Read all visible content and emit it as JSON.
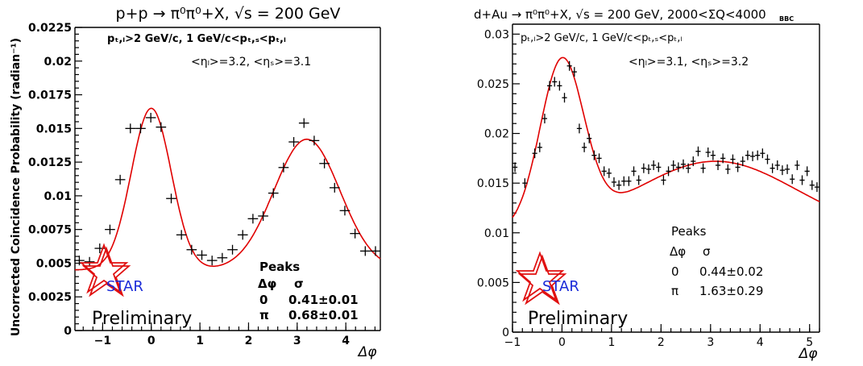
{
  "figure": {
    "ylabel": "Uncorrected Coincidence Probability (radian⁻¹)"
  },
  "chart_data": [
    {
      "type": "scatter",
      "title": "p+p → π⁰π⁰+X, √s = 200 GeV",
      "cuts_line1": "pₜ,ₗ>2 GeV/c,  1 GeV/c<pₜ,ₛ<pₜ,ₗ",
      "cuts_line2": "<ηₗ>=3.2, <ηₛ>=3.1",
      "xlabel": "Δφ",
      "ylabel": "Uncorrected Coincidence Probability (radian⁻¹)",
      "xlim": [
        -1.57,
        4.71
      ],
      "ylim": [
        0,
        0.0225
      ],
      "xticks": [
        -1,
        0,
        1,
        2,
        3,
        4
      ],
      "yticks": [
        0,
        0.0025,
        0.005,
        0.0075,
        0.01,
        0.0125,
        0.015,
        0.0175,
        0.02,
        0.0225
      ],
      "ytick_labels": [
        "0",
        "0.0025",
        "0.005",
        "0.0075",
        "0.01",
        "0.0125",
        "0.015",
        "0.0175",
        "0.02",
        "0.0225"
      ],
      "logo": "STAR",
      "preliminary": "Preliminary",
      "peaks": {
        "title": "Peaks",
        "col1": "Δφ",
        "col2": "σ",
        "rows": [
          {
            "phi": "0",
            "sigma": "0.41±0.01"
          },
          {
            "phi": "π",
            "sigma": "0.68±0.01"
          }
        ]
      },
      "series": [
        {
          "type": "data",
          "x": [
            -1.48,
            -1.27,
            -1.06,
            -0.85,
            -0.64,
            -0.43,
            -0.22,
            -0.01,
            0.2,
            0.41,
            0.62,
            0.83,
            1.04,
            1.25,
            1.46,
            1.67,
            1.88,
            2.09,
            2.3,
            2.51,
            2.72,
            2.93,
            3.14,
            3.35,
            3.56,
            3.77,
            3.98,
            4.19,
            4.4,
            4.61
          ],
          "y": [
            0.0052,
            0.0051,
            0.0061,
            0.0075,
            0.0112,
            0.015,
            0.015,
            0.0158,
            0.0151,
            0.0098,
            0.0071,
            0.006,
            0.0056,
            0.0052,
            0.0054,
            0.006,
            0.0071,
            0.0083,
            0.0085,
            0.0102,
            0.0121,
            0.014,
            0.0154,
            0.0141,
            0.0124,
            0.0106,
            0.0089,
            0.0072,
            0.0059,
            0.0059
          ],
          "xerr": 0.105
        },
        {
          "type": "fit",
          "model": "gaussian_peaks",
          "baseline": 0.0045,
          "near_amp": 0.012,
          "near_center": 0,
          "near_sigma": 0.41,
          "away_amp": 0.0097,
          "away_center": 3.2,
          "away_sigma": 0.68
        }
      ]
    },
    {
      "type": "scatter",
      "title": "d+Au → π⁰π⁰+X, √s = 200 GeV, 2000<ΣQ₂₂₂<4000",
      "title_plain": "d+Au → π⁰π⁰+X, √s = 200 GeV, 2000<ΣQ<4000",
      "title_sub": "BBC",
      "cuts_line1": "pₜ,ₗ>2 GeV/c,  1 GeV/c<pₜ,ₛ<pₜ,ₗ",
      "cuts_line2": "<ηₗ>=3.1, <ηₛ>=3.2",
      "xlabel": "Δφ",
      "xlim": [
        -1,
        5.2
      ],
      "ylim": [
        0,
        0.031
      ],
      "xticks": [
        -1,
        0,
        1,
        2,
        3,
        4,
        5
      ],
      "yticks": [
        0,
        0.005,
        0.01,
        0.015,
        0.02,
        0.025,
        0.03
      ],
      "ytick_labels": [
        "0",
        "0.005",
        "0.01",
        "0.015",
        "0.02",
        "0.025",
        "0.03"
      ],
      "logo": "STAR",
      "preliminary": "Preliminary",
      "peaks": {
        "title": "Peaks",
        "col1": "Δφ",
        "col2": "σ",
        "rows": [
          {
            "phi": "0",
            "sigma": "0.44±0.02"
          },
          {
            "phi": "π",
            "sigma": "1.63±0.29"
          }
        ]
      },
      "series": [
        {
          "type": "data",
          "x": [
            -0.95,
            -0.75,
            -0.55,
            -0.45,
            -0.35,
            -0.25,
            -0.15,
            -0.05,
            0.05,
            0.15,
            0.25,
            0.35,
            0.45,
            0.55,
            0.65,
            0.75,
            0.85,
            0.95,
            1.05,
            1.15,
            1.25,
            1.35,
            1.45,
            1.55,
            1.65,
            1.75,
            1.85,
            1.95,
            2.05,
            2.15,
            2.25,
            2.35,
            2.45,
            2.55,
            2.65,
            2.75,
            2.85,
            2.95,
            3.05,
            3.15,
            3.25,
            3.35,
            3.45,
            3.55,
            3.65,
            3.75,
            3.85,
            3.95,
            4.05,
            4.15,
            4.25,
            4.35,
            4.45,
            4.55,
            4.65,
            4.75,
            4.85,
            4.95,
            5.05,
            5.15
          ],
          "y": [
            0.0166,
            0.015,
            0.018,
            0.0186,
            0.0215,
            0.0248,
            0.0252,
            0.0248,
            0.0236,
            0.0268,
            0.0262,
            0.0205,
            0.0186,
            0.0195,
            0.0178,
            0.0175,
            0.0162,
            0.016,
            0.0151,
            0.0148,
            0.0152,
            0.0152,
            0.0162,
            0.0153,
            0.0165,
            0.0164,
            0.0168,
            0.0166,
            0.0153,
            0.0162,
            0.0168,
            0.0166,
            0.0169,
            0.0165,
            0.0172,
            0.0182,
            0.0165,
            0.0181,
            0.0178,
            0.0168,
            0.0175,
            0.0164,
            0.0174,
            0.0166,
            0.0172,
            0.0178,
            0.0177,
            0.0178,
            0.018,
            0.0174,
            0.0165,
            0.0168,
            0.0163,
            0.0164,
            0.0154,
            0.0168,
            0.0153,
            0.0162,
            0.0148,
            0.0146
          ],
          "xerr": 0.05
        },
        {
          "type": "fit",
          "model": "gaussian_peaks",
          "baseline": 0.01,
          "near_amp": 0.01645,
          "near_center": 0,
          "near_sigma": 0.44,
          "away_amp": 0.0072,
          "away_center": 3.1,
          "away_sigma": 1.63
        }
      ]
    }
  ]
}
